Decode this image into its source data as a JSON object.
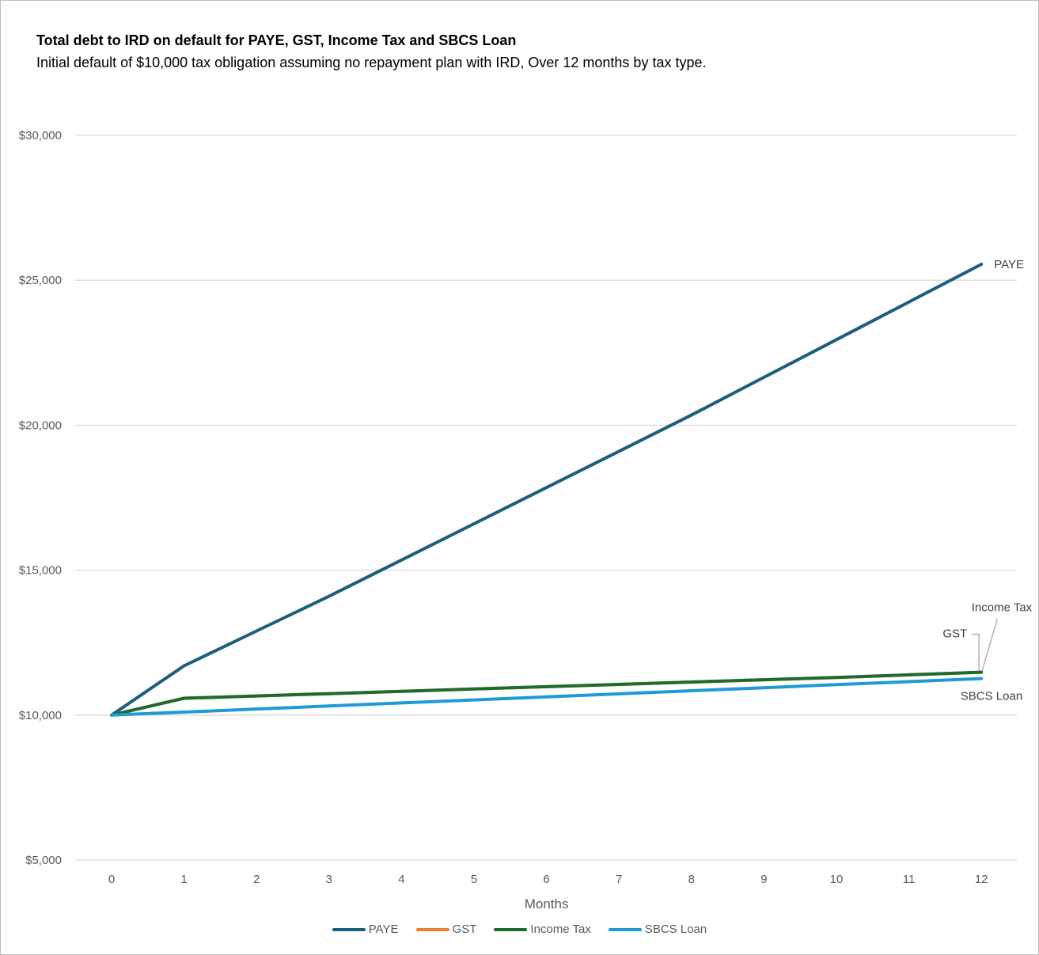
{
  "chart_data": {
    "type": "line",
    "title": "Total debt to IRD on default for PAYE, GST, Income Tax and SBCS Loan",
    "subtitle": "Initial default of $10,000 tax obligation assuming no repayment plan with IRD, Over 12 months by tax type.",
    "xlabel": "Months",
    "ylabel": "",
    "x": [
      0,
      1,
      2,
      3,
      4,
      5,
      6,
      7,
      8,
      9,
      10,
      11,
      12
    ],
    "x_tick_labels": [
      "0",
      "1",
      "2",
      "3",
      "4",
      "5",
      "6",
      "7",
      "8",
      "9",
      "10",
      "11",
      "12"
    ],
    "ylim": [
      5000,
      30000
    ],
    "y_ticks": [
      5000,
      10000,
      15000,
      20000,
      25000,
      30000
    ],
    "y_tick_labels": [
      "$5,000",
      "$10,000",
      "$15,000",
      "$20,000",
      "$25,000",
      "$30,000"
    ],
    "grid": true,
    "legend_position": "bottom",
    "series": [
      {
        "name": "PAYE",
        "color": "#1b5e7f",
        "end_label": "PAYE",
        "values": [
          10000,
          11700,
          12900,
          14100,
          15350,
          16600,
          17850,
          19100,
          20350,
          21650,
          22950,
          24250,
          25550
        ]
      },
      {
        "name": "GST",
        "color": "#ed7d31",
        "end_label": "GST",
        "values": [
          10000,
          10580,
          10660,
          10740,
          10820,
          10900,
          10980,
          11060,
          11140,
          11220,
          11300,
          11390,
          11480
        ]
      },
      {
        "name": "Income Tax",
        "color": "#1e6b2e",
        "end_label": "Income Tax",
        "values": [
          10000,
          10580,
          10660,
          10740,
          10820,
          10900,
          10980,
          11060,
          11140,
          11220,
          11300,
          11390,
          11480
        ]
      },
      {
        "name": "SBCS Loan",
        "color": "#1e9ad6",
        "end_label": "SBCS Loan",
        "values": [
          10000,
          10105,
          10210,
          10315,
          10420,
          10525,
          10630,
          10735,
          10840,
          10945,
          11050,
          11155,
          11260
        ]
      }
    ]
  }
}
